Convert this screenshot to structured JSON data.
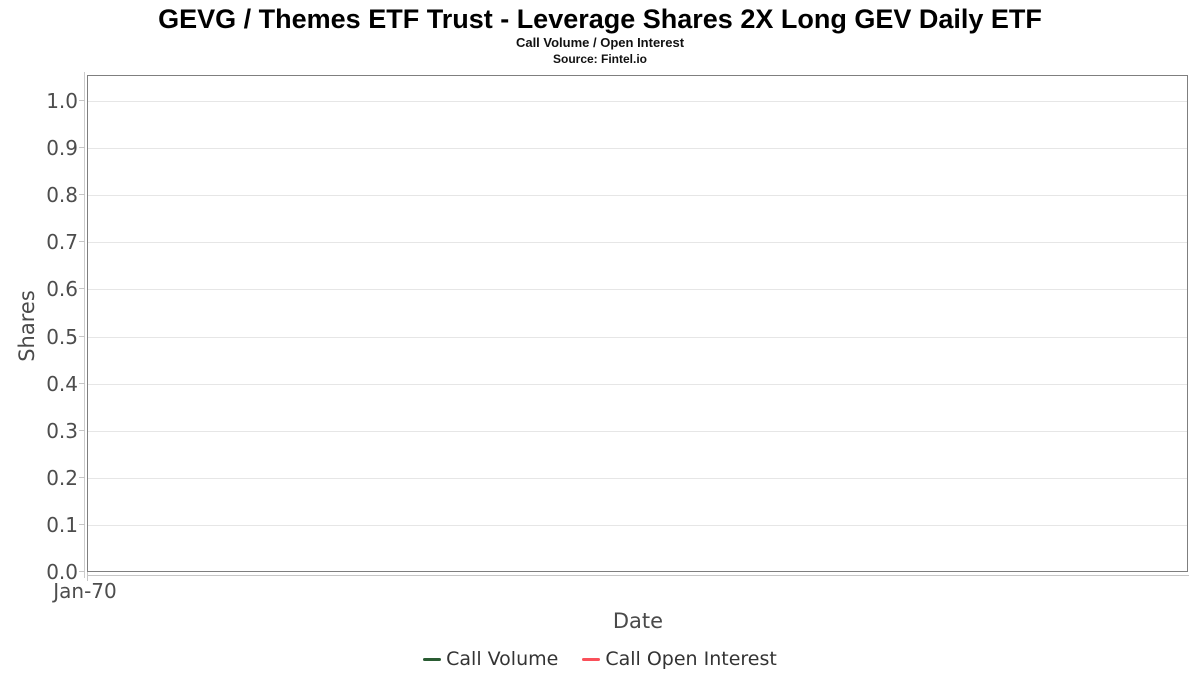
{
  "chart_data": {
    "type": "line",
    "title": "GEVG / Themes ETF Trust - Leverage Shares 2X Long GEV Daily ETF",
    "subtitle": "Call Volume / Open Interest",
    "source": "Source: Fintel.io",
    "xlabel": "Date",
    "ylabel": "Shares",
    "ylim": [
      0.0,
      1.0
    ],
    "yticks": [
      "1.0",
      "0.9",
      "0.8",
      "0.7",
      "0.6",
      "0.5",
      "0.4",
      "0.3",
      "0.2",
      "0.1",
      "0.0"
    ],
    "xticks": [
      "Jan-70"
    ],
    "grid": true,
    "legend_position": "bottom",
    "series": [
      {
        "name": "Call Volume",
        "color": "#2a5c33",
        "x": [],
        "values": []
      },
      {
        "name": "Call Open Interest",
        "color": "#fa505a",
        "x": [],
        "values": []
      }
    ]
  },
  "colors": {
    "plot_border": "#7f7f7f",
    "gridline": "#e6e6e6",
    "axis_line": "#c6c6c6",
    "tick_label": "#4d4d4d",
    "axis_title": "#4a4a4a",
    "legend_text": "#333333",
    "background": "#ffffff"
  }
}
